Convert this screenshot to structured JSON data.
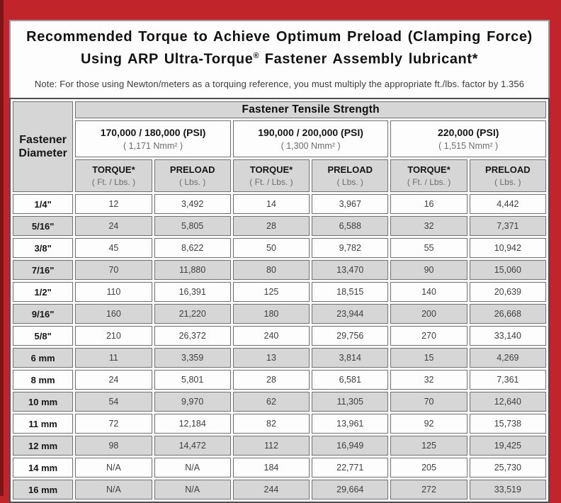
{
  "colors": {
    "frame_red": "#c1242b",
    "frame_edge_maroon": "#7c1517",
    "panel_border_gray": "#9b9b9d",
    "cell_gray": "#d6d6d6",
    "cell_white": "#fdfdfd",
    "table_border": "#4e4e50"
  },
  "title": {
    "line1": "Recommended Torque to Achieve Optimum Preload (Clamping Force)",
    "line2_pre": "Using ARP Ultra-Torque",
    "line2_reg": "®",
    "line2_post": " Fastener Assembly lubricant*"
  },
  "note": "Note: For those using Newton/meters as a torquing reference, you must multiply the appropriate ft./lbs. factor by 1.356",
  "table": {
    "corner_header": {
      "line1": "Fastener",
      "line2": "Diameter"
    },
    "tensile_header": "Fastener Tensile Strength",
    "groups": [
      {
        "psi": "170,000 / 180,000 (PSI)",
        "nmm": "( 1,171 Nmm² )"
      },
      {
        "psi": "190,000 / 200,000 (PSI)",
        "nmm": "( 1,300 Nmm² )"
      },
      {
        "psi": "220,000 (PSI)",
        "nmm": "( 1,515 Nmm² )"
      }
    ],
    "sub_headers": {
      "torque_label": "TORQUE*",
      "torque_unit": "( Ft. / Lbs. )",
      "preload_label": "PRELOAD",
      "preload_unit": "( Lbs. )"
    },
    "rows": [
      {
        "diameter": "1/4\"",
        "values": [
          "12",
          "3,492",
          "14",
          "3,967",
          "16",
          "4,442"
        ]
      },
      {
        "diameter": "5/16\"",
        "values": [
          "24",
          "5,805",
          "28",
          "6,588",
          "32",
          "7,371"
        ]
      },
      {
        "diameter": "3/8\"",
        "values": [
          "45",
          "8,622",
          "50",
          "9,782",
          "55",
          "10,942"
        ]
      },
      {
        "diameter": "7/16\"",
        "values": [
          "70",
          "11,880",
          "80",
          "13,470",
          "90",
          "15,060"
        ]
      },
      {
        "diameter": "1/2\"",
        "values": [
          "110",
          "16,391",
          "125",
          "18,515",
          "140",
          "20,639"
        ]
      },
      {
        "diameter": "9/16\"",
        "values": [
          "160",
          "21,220",
          "180",
          "23,944",
          "200",
          "26,668"
        ]
      },
      {
        "diameter": "5/8\"",
        "values": [
          "210",
          "26,372",
          "240",
          "29,756",
          "270",
          "33,140"
        ]
      },
      {
        "diameter": "6 mm",
        "values": [
          "11",
          "3,359",
          "13",
          "3,814",
          "15",
          "4,269"
        ]
      },
      {
        "diameter": "8 mm",
        "values": [
          "24",
          "5,801",
          "28",
          "6,581",
          "32",
          "7,361"
        ]
      },
      {
        "diameter": "10 mm",
        "values": [
          "54",
          "9,970",
          "62",
          "11,305",
          "70",
          "12,640"
        ]
      },
      {
        "diameter": "11 mm",
        "values": [
          "72",
          "12,184",
          "82",
          "13,961",
          "92",
          "15,738"
        ]
      },
      {
        "diameter": "12 mm",
        "values": [
          "98",
          "14,472",
          "112",
          "16,949",
          "125",
          "19,425"
        ]
      },
      {
        "diameter": "14 mm",
        "values": [
          "N/A",
          "N/A",
          "184",
          "22,771",
          "205",
          "25,730"
        ]
      },
      {
        "diameter": "16 mm",
        "values": [
          "N/A",
          "N/A",
          "244",
          "29,664",
          "272",
          "33,519"
        ]
      }
    ]
  }
}
